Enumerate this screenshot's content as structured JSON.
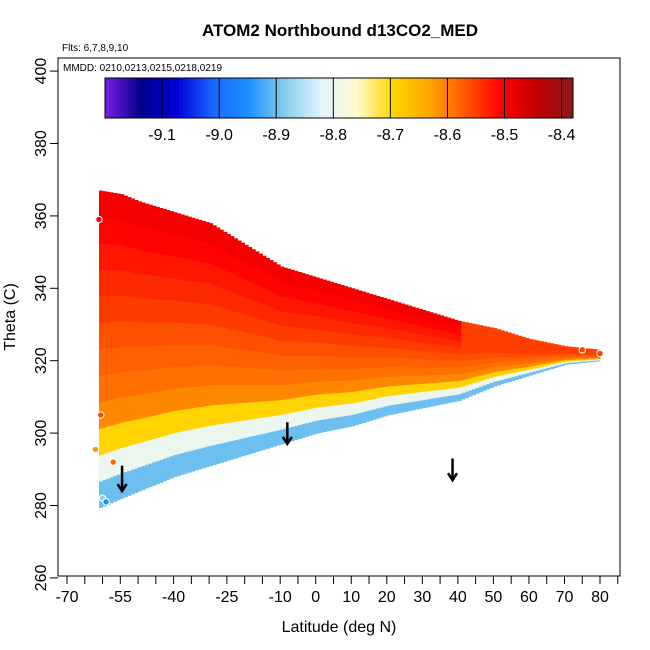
{
  "chart_data": {
    "type": "heatmap",
    "title": "ATOM2 Northbound d13CO2_MED",
    "flights_note": "Flts: 6,7,8,9,10",
    "dates_note": "MMDD: 0210,0213,0215,0218,0219",
    "xlabel": "Latitude (deg N)",
    "ylabel": "Theta (C)",
    "xlim": [
      -70,
      85
    ],
    "ylim": [
      260,
      405
    ],
    "x_ticks": [
      -70,
      -55,
      -40,
      -25,
      -10,
      0,
      10,
      20,
      30,
      40,
      50,
      60,
      70,
      80
    ],
    "x_minor_ticks": [
      -65,
      -60,
      -50,
      -45,
      -35,
      -30,
      -20,
      -15,
      -5,
      5,
      15,
      25,
      35,
      45,
      55,
      65,
      75,
      85
    ],
    "y_ticks": [
      260,
      280,
      300,
      320,
      340,
      360,
      380,
      400
    ],
    "colorbar": {
      "range": [
        -9.2,
        -8.38
      ],
      "ticks": [
        -9.1,
        -9.0,
        -8.9,
        -8.8,
        -8.7,
        -8.6,
        -8.5,
        -8.4
      ],
      "colors": [
        "#7a1fe6",
        "#00008b",
        "#0000d8",
        "#1a66ff",
        "#1e90ff",
        "#87ceeb",
        "#e0f4ff",
        "#fffad0",
        "#ffd700",
        "#ffa500",
        "#ff5a00",
        "#ff0000",
        "#c00000",
        "#8b1a1a"
      ]
    },
    "field_bounds": {
      "top_edge": [
        [
          -61,
          367
        ],
        [
          -55,
          366
        ],
        [
          -50,
          364
        ],
        [
          -40,
          361
        ],
        [
          -30,
          358
        ],
        [
          -20,
          352
        ],
        [
          -10,
          346
        ],
        [
          0,
          343
        ],
        [
          10,
          340
        ],
        [
          20,
          337
        ],
        [
          30,
          334
        ],
        [
          40,
          331
        ],
        [
          50,
          329
        ],
        [
          60,
          326
        ],
        [
          70,
          324
        ],
        [
          80,
          323
        ]
      ],
      "bottom_edge": [
        [
          -62,
          279
        ],
        [
          -55,
          282
        ],
        [
          -50,
          284
        ],
        [
          -40,
          288
        ],
        [
          -30,
          291
        ],
        [
          -20,
          294
        ],
        [
          -10,
          297
        ],
        [
          0,
          300
        ],
        [
          10,
          302
        ],
        [
          20,
          305
        ],
        [
          30,
          307
        ],
        [
          40,
          309
        ],
        [
          50,
          313
        ],
        [
          60,
          316
        ],
        [
          70,
          319
        ],
        [
          80,
          320
        ]
      ]
    },
    "annotations": [
      {
        "type": "arrow",
        "x": -54.5,
        "y_from": 291,
        "y_to": 284
      },
      {
        "type": "arrow",
        "x": -8,
        "y_from": 303,
        "y_to": 297
      },
      {
        "type": "arrow",
        "x": 38.5,
        "y_from": 293,
        "y_to": 287
      }
    ],
    "points": [
      {
        "x": -61,
        "y": 359,
        "value": -8.5
      },
      {
        "x": -60.5,
        "y": 305,
        "value": -8.56
      },
      {
        "x": -62,
        "y": 295.5,
        "value": -8.62
      },
      {
        "x": -57,
        "y": 292,
        "value": -8.58
      },
      {
        "x": -60,
        "y": 282,
        "value": -8.88
      },
      {
        "x": -59,
        "y": 281,
        "value": -8.95
      },
      {
        "x": 75,
        "y": 323,
        "value": -8.55
      },
      {
        "x": 80,
        "y": 322,
        "value": -8.55
      }
    ]
  }
}
